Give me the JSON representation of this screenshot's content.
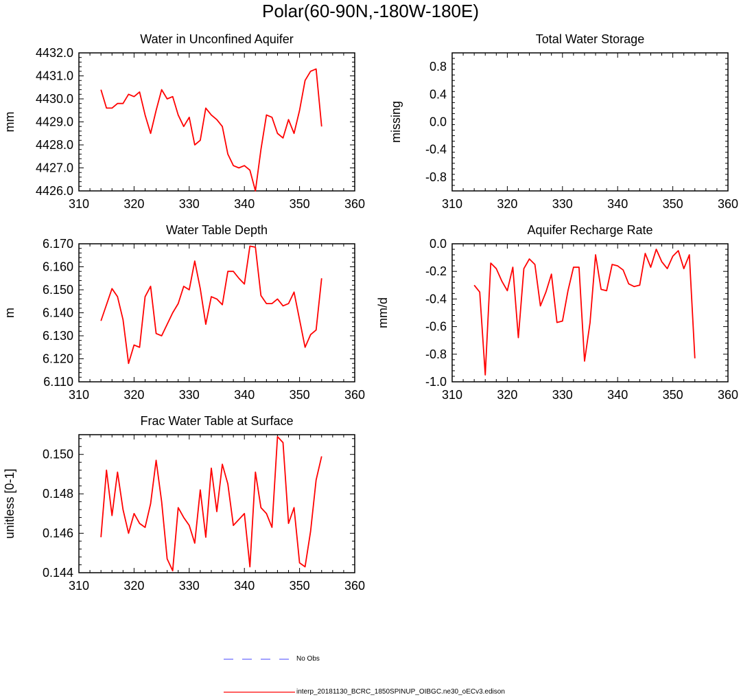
{
  "title": "Polar(60-90N,-180W-180E)",
  "colors": {
    "model": "#ff0000",
    "obs": "#6a6aff",
    "axis": "#000000"
  },
  "legend": {
    "obs_label": "No Obs",
    "model_label": "interp_20181130_BCRC_1850SPINUP_OIBGC.ne30_oECv3.edison"
  },
  "chart_data": [
    {
      "id": "p1",
      "type": "line",
      "title": "Water in Unconfined Aquifer",
      "xlabel": "",
      "ylabel": "mm",
      "xlim": [
        310,
        360
      ],
      "ylim": [
        4426.0,
        4432.0
      ],
      "xticks": [
        310,
        320,
        330,
        340,
        350,
        360
      ],
      "yticks": [
        4426.0,
        4427.0,
        4428.0,
        4429.0,
        4430.0,
        4431.0,
        4432.0
      ],
      "ydecimals": 1,
      "x_start": 314,
      "series": [
        {
          "name": "interp_20181130_BCRC_1850SPINUP_OIBGC.ne30_oECv3.edison",
          "values": [
            4430.4,
            4429.6,
            4429.6,
            4429.8,
            4429.8,
            4430.2,
            4430.1,
            4430.3,
            4429.3,
            4428.5,
            4429.5,
            4430.4,
            4430.0,
            4430.1,
            4429.3,
            4428.8,
            4429.2,
            4428.0,
            4428.2,
            4429.6,
            4429.3,
            4429.1,
            4428.8,
            4427.6,
            4427.1,
            4427.0,
            4427.1,
            4426.9,
            4426.0,
            4427.8,
            4429.3,
            4429.2,
            4428.5,
            4428.3,
            4429.1,
            4428.5,
            4429.5,
            4430.8,
            4431.2,
            4431.3,
            4428.8
          ]
        }
      ]
    },
    {
      "id": "p2",
      "type": "line",
      "title": "Total Water Storage",
      "xlabel": "",
      "ylabel": "missing",
      "xlim": [
        310,
        360
      ],
      "ylim": [
        -1.0,
        1.0
      ],
      "xticks": [
        310,
        320,
        330,
        340,
        350,
        360
      ],
      "yticks": [
        -0.8,
        -0.4,
        0.0,
        0.4,
        0.8
      ],
      "ydecimals": 1,
      "x_start": 314,
      "series": []
    },
    {
      "id": "p3",
      "type": "line",
      "title": "Water Table Depth",
      "xlabel": "",
      "ylabel": "m",
      "xlim": [
        310,
        360
      ],
      "ylim": [
        6.11,
        6.17
      ],
      "xticks": [
        310,
        320,
        330,
        340,
        350,
        360
      ],
      "yticks": [
        6.11,
        6.12,
        6.13,
        6.14,
        6.15,
        6.16,
        6.17
      ],
      "ydecimals": 3,
      "x_start": 314,
      "series": [
        {
          "name": "interp_20181130_BCRC_1850SPINUP_OIBGC.ne30_oECv3.edison",
          "values": [
            6.1365,
            6.1435,
            6.1505,
            6.147,
            6.137,
            6.118,
            6.126,
            6.125,
            6.147,
            6.1515,
            6.131,
            6.13,
            6.135,
            6.14,
            6.144,
            6.1515,
            6.15,
            6.1625,
            6.1505,
            6.135,
            6.147,
            6.146,
            6.1435,
            6.158,
            6.158,
            6.155,
            6.1525,
            6.169,
            6.1685,
            6.1475,
            6.144,
            6.144,
            6.146,
            6.143,
            6.144,
            6.149,
            6.137,
            6.125,
            6.1305,
            6.1325,
            6.155
          ]
        }
      ]
    },
    {
      "id": "p4",
      "type": "line",
      "title": "Aquifer Recharge Rate",
      "xlabel": "",
      "ylabel": "mm/d",
      "xlim": [
        310,
        360
      ],
      "ylim": [
        -1.0,
        0.0
      ],
      "xticks": [
        310,
        320,
        330,
        340,
        350,
        360
      ],
      "yticks": [
        -1.0,
        -0.8,
        -0.6,
        -0.4,
        -0.2,
        0.0
      ],
      "ydecimals": 1,
      "x_start": 314,
      "series": [
        {
          "name": "interp_20181130_BCRC_1850SPINUP_OIBGC.ne30_oECv3.edison",
          "values": [
            -0.3,
            -0.35,
            -0.95,
            -0.14,
            -0.18,
            -0.27,
            -0.34,
            -0.17,
            -0.68,
            -0.18,
            -0.11,
            -0.15,
            -0.45,
            -0.35,
            -0.22,
            -0.57,
            -0.56,
            -0.34,
            -0.17,
            -0.17,
            -0.85,
            -0.57,
            -0.08,
            -0.33,
            -0.34,
            -0.15,
            -0.16,
            -0.19,
            -0.29,
            -0.31,
            -0.3,
            -0.07,
            -0.17,
            -0.04,
            -0.13,
            -0.18,
            -0.09,
            -0.05,
            -0.18,
            -0.08,
            -0.83
          ]
        }
      ]
    },
    {
      "id": "p5",
      "type": "line",
      "title": "Frac Water Table at Surface",
      "xlabel": "",
      "ylabel": "unitless [0-1]",
      "xlim": [
        310,
        360
      ],
      "ylim": [
        0.144,
        0.151
      ],
      "xticks": [
        310,
        320,
        330,
        340,
        350,
        360
      ],
      "yticks": [
        0.144,
        0.146,
        0.148,
        0.15
      ],
      "ydecimals": 3,
      "x_start": 314,
      "series": [
        {
          "name": "interp_20181130_BCRC_1850SPINUP_OIBGC.ne30_oECv3.edison",
          "values": [
            0.1458,
            0.1492,
            0.1469,
            0.1491,
            0.1472,
            0.146,
            0.147,
            0.1465,
            0.1463,
            0.1475,
            0.1497,
            0.1476,
            0.1447,
            0.1441,
            0.1473,
            0.1468,
            0.1464,
            0.1455,
            0.1482,
            0.1458,
            0.1493,
            0.1471,
            0.1495,
            0.1485,
            0.1464,
            0.1467,
            0.147,
            0.1443,
            0.1491,
            0.1473,
            0.147,
            0.1463,
            0.1509,
            0.1506,
            0.1465,
            0.1473,
            0.1445,
            0.1443,
            0.1461,
            0.1487,
            0.1499
          ]
        }
      ]
    }
  ]
}
